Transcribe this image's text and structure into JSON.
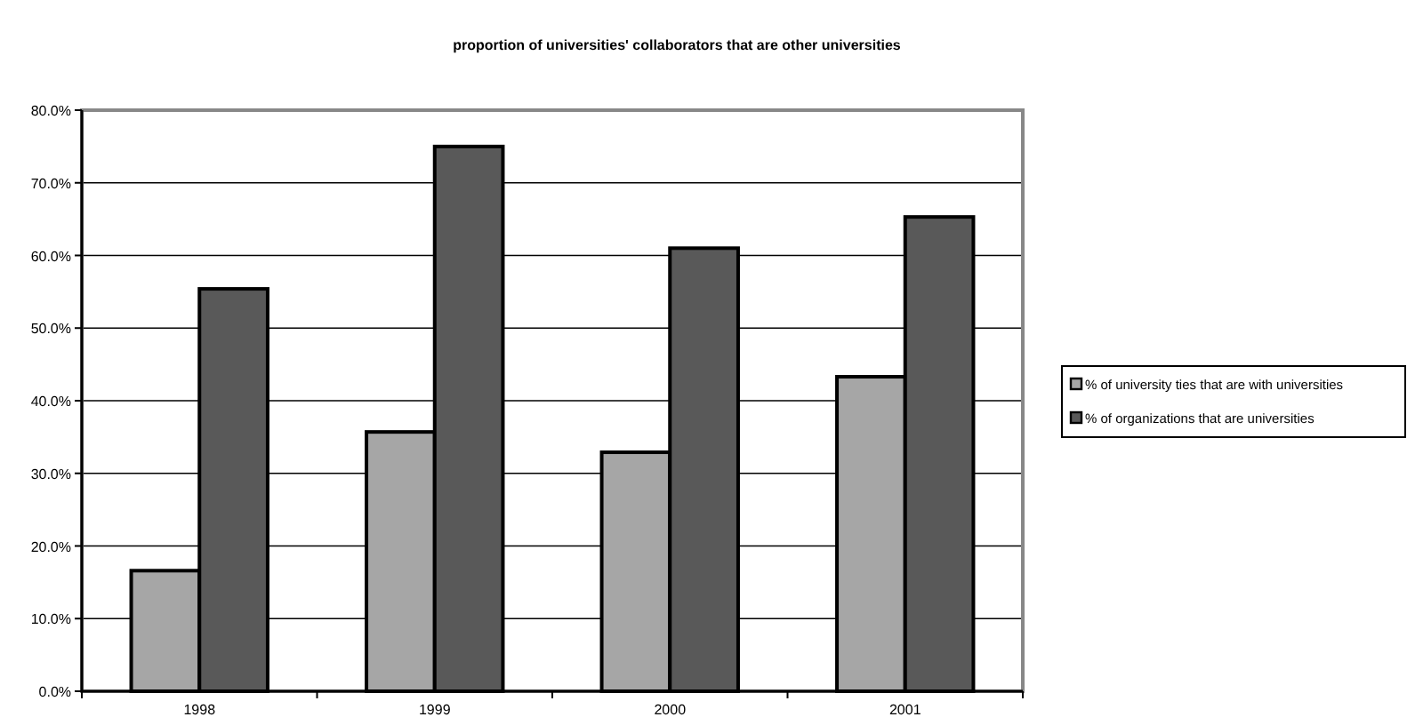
{
  "chart_data": {
    "type": "bar",
    "title": "proportion of universities' collaborators that are other universities",
    "categories": [
      "1998",
      "1999",
      "2000",
      "2001"
    ],
    "series": [
      {
        "name": "% of university ties that are with universities",
        "color": "#a6a6a6",
        "values": [
          16.6,
          35.7,
          32.9,
          43.3
        ]
      },
      {
        "name": "% of organizations that are universities",
        "color": "#595959",
        "values": [
          55.4,
          75.0,
          61.0,
          65.3
        ]
      }
    ],
    "ylim": [
      0,
      80
    ],
    "yticks": [
      {
        "value": 0,
        "label": "0.0%"
      },
      {
        "value": 10,
        "label": "10.0%"
      },
      {
        "value": 20,
        "label": "20.0%"
      },
      {
        "value": 30,
        "label": "30.0%"
      },
      {
        "value": 40,
        "label": "40.0%"
      },
      {
        "value": 50,
        "label": "50.0%"
      },
      {
        "value": 60,
        "label": "60.0%"
      },
      {
        "value": 70,
        "label": "70.0%"
      },
      {
        "value": 80,
        "label": "80.0%"
      }
    ],
    "grid": "y",
    "legend": "right"
  }
}
